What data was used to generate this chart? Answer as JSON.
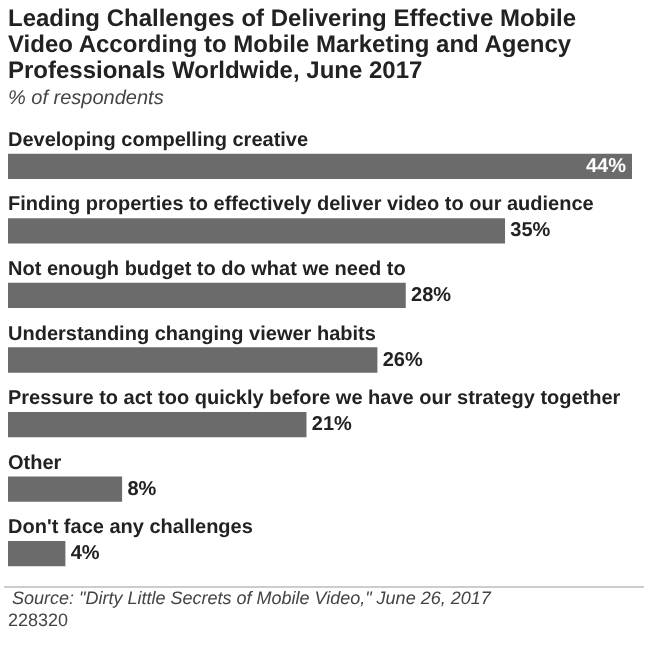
{
  "chart_data": {
    "type": "bar",
    "orientation": "horizontal",
    "title": "Leading Challenges of Delivering Effective Mobile Video According to Mobile Marketing and Agency Professionals Worldwide, June 2017",
    "subtitle": "% of respondents",
    "categories": [
      "Developing compelling creative",
      "Finding properties to effectively deliver video to our audience",
      "Not enough budget to do what we need to",
      "Understanding changing viewer habits",
      "Pressure to act too quickly before we have our strategy together",
      "Other",
      "Don't face any challenges"
    ],
    "values": [
      44,
      35,
      28,
      26,
      21,
      8,
      4
    ],
    "value_labels": [
      "44%",
      "35%",
      "28%",
      "26%",
      "21%",
      "8%",
      "4%"
    ],
    "color": "#6b6b6b",
    "annotations": [
      "Source: \"Dirty Little Secrets of Mobile Video,\" June 26, 2017",
      "228320"
    ]
  }
}
